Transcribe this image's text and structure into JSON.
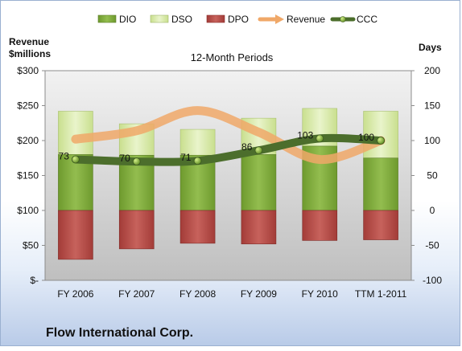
{
  "company_name": "Flow International Corp.",
  "chart_data": {
    "type": "bar",
    "title": "12-Month Periods",
    "categories": [
      "FY 2006",
      "FY 2007",
      "FY 2008",
      "FY 2009",
      "FY 2010",
      "TTM 1-2011"
    ],
    "left_axis": {
      "label_line1": "Revenue",
      "label_line2": "$millions",
      "range": [
        0,
        300
      ],
      "ticks": [
        0,
        50,
        100,
        150,
        200,
        250,
        300
      ],
      "tick_labels": [
        "$-",
        "$50",
        "$100",
        "$150",
        "$200",
        "$250",
        "$300"
      ]
    },
    "right_axis": {
      "label": "Days",
      "range": [
        -100,
        200
      ],
      "ticks": [
        -100,
        -50,
        0,
        50,
        100,
        150,
        200
      ],
      "tick_labels": [
        "-100",
        "-50",
        "0",
        "50",
        "100",
        "150",
        "200"
      ]
    },
    "legend_position": "top",
    "grid": false,
    "series": [
      {
        "name": "DIO",
        "kind": "stacked-bar-positive",
        "axis": "right",
        "color": "#7fa83a",
        "values": [
          80,
          79,
          79,
          80,
          92,
          75
        ]
      },
      {
        "name": "DSO",
        "kind": "stacked-bar-positive",
        "axis": "right",
        "color": "#d6e8a8",
        "values": [
          62,
          45,
          37,
          52,
          54,
          67
        ]
      },
      {
        "name": "DPO",
        "kind": "bar-negative",
        "axis": "right",
        "color": "#b84a45",
        "values": [
          -70,
          -55,
          -47,
          -48,
          -43,
          -42
        ]
      },
      {
        "name": "Revenue",
        "kind": "smooth-line",
        "axis": "left",
        "color": "#f0a868",
        "values": [
          202,
          214,
          243,
          212,
          173,
          200
        ]
      },
      {
        "name": "CCC",
        "kind": "line-markers",
        "axis": "right",
        "color": "#4c6e2c",
        "values": [
          73,
          70,
          71,
          86,
          103,
          100
        ],
        "data_labels": [
          "73",
          "70",
          "71",
          "86",
          "103",
          "100"
        ]
      }
    ]
  }
}
